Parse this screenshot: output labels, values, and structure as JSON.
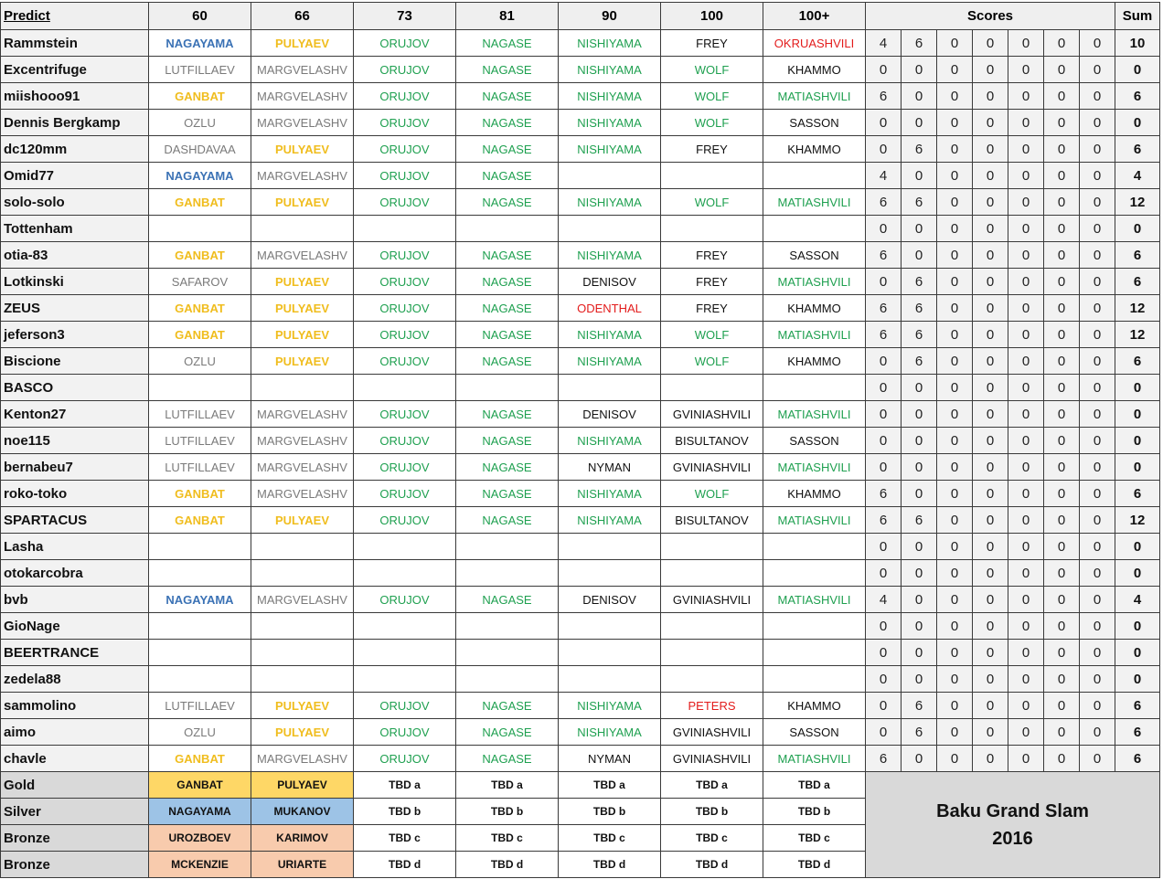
{
  "header": {
    "predict": "Predict",
    "categories": [
      "60",
      "66",
      "73",
      "81",
      "90",
      "100",
      "100+"
    ],
    "scores": "Scores",
    "sum": "Sum"
  },
  "colors": {
    "blue": "#3b72b5",
    "yellow": "#f0bd1e",
    "green": "#1fa050",
    "gray": "#7a7a7a",
    "red": "#e31c1c",
    "black": "#111111",
    "gold_fill": "#fed766",
    "silver_fill": "#9dc3e6",
    "bronze_fill": "#f8cbad"
  },
  "pick_colors": {
    "NAGAYAMA": "blue",
    "GANBAT": "yellow",
    "PULYAEV": "yellow",
    "ORUJOV": "green",
    "NAGASE": "green",
    "NISHIYAMA": "green",
    "WOLF": "green",
    "MATIASHVILI": "green",
    "OKRUASHVILI": "red",
    "ODENTHAL": "red",
    "PETERS": "red",
    "FREY": "black",
    "KHAMMO": "black",
    "SASSON": "black",
    "DENISOV": "black",
    "GVINIASHVILI": "black",
    "BISULTANOV": "black",
    "NYMAN": "black",
    "LUTFILLAEV": "gray",
    "MARGVELASHV": "gray",
    "OZLU": "gray",
    "DASHDAVAA": "gray",
    "SAFAROV": "gray"
  },
  "rows": [
    {
      "name": "Rammstein",
      "picks": [
        "NAGAYAMA",
        "PULYAEV",
        "ORUJOV",
        "NAGASE",
        "NISHIYAMA",
        "FREY",
        "OKRUASHVILI"
      ],
      "scores": [
        4,
        6,
        0,
        0,
        0,
        0,
        0
      ],
      "sum": 10
    },
    {
      "name": "Excentrifuge",
      "picks": [
        "LUTFILLAEV",
        "MARGVELASHV",
        "ORUJOV",
        "NAGASE",
        "NISHIYAMA",
        "WOLF",
        "KHAMMO"
      ],
      "scores": [
        0,
        0,
        0,
        0,
        0,
        0,
        0
      ],
      "sum": 0
    },
    {
      "name": "miishooo91",
      "picks": [
        "GANBAT",
        "MARGVELASHV",
        "ORUJOV",
        "NAGASE",
        "NISHIYAMA",
        "WOLF",
        "MATIASHVILI"
      ],
      "scores": [
        6,
        0,
        0,
        0,
        0,
        0,
        0
      ],
      "sum": 6
    },
    {
      "name": "Dennis Bergkamp",
      "picks": [
        "OZLU",
        "MARGVELASHV",
        "ORUJOV",
        "NAGASE",
        "NISHIYAMA",
        "WOLF",
        "SASSON"
      ],
      "scores": [
        0,
        0,
        0,
        0,
        0,
        0,
        0
      ],
      "sum": 0
    },
    {
      "name": "dc120mm",
      "picks": [
        "DASHDAVAA",
        "PULYAEV",
        "ORUJOV",
        "NAGASE",
        "NISHIYAMA",
        "FREY",
        "KHAMMO"
      ],
      "scores": [
        0,
        6,
        0,
        0,
        0,
        0,
        0
      ],
      "sum": 6
    },
    {
      "name": "Omid77",
      "picks": [
        "NAGAYAMA",
        "MARGVELASHV",
        "ORUJOV",
        "NAGASE",
        "",
        "",
        ""
      ],
      "scores": [
        4,
        0,
        0,
        0,
        0,
        0,
        0
      ],
      "sum": 4
    },
    {
      "name": "solo-solo",
      "picks": [
        "GANBAT",
        "PULYAEV",
        "ORUJOV",
        "NAGASE",
        "NISHIYAMA",
        "WOLF",
        "MATIASHVILI"
      ],
      "scores": [
        6,
        6,
        0,
        0,
        0,
        0,
        0
      ],
      "sum": 12
    },
    {
      "name": "Tottenham",
      "picks": [
        "",
        "",
        "",
        "",
        "",
        "",
        ""
      ],
      "scores": [
        0,
        0,
        0,
        0,
        0,
        0,
        0
      ],
      "sum": 0
    },
    {
      "name": "otia-83",
      "picks": [
        "GANBAT",
        "MARGVELASHV",
        "ORUJOV",
        "NAGASE",
        "NISHIYAMA",
        "FREY",
        "SASSON"
      ],
      "scores": [
        6,
        0,
        0,
        0,
        0,
        0,
        0
      ],
      "sum": 6
    },
    {
      "name": "Lotkinski",
      "picks": [
        "SAFAROV",
        "PULYAEV",
        "ORUJOV",
        "NAGASE",
        "DENISOV",
        "FREY",
        "MATIASHVILI"
      ],
      "scores": [
        0,
        6,
        0,
        0,
        0,
        0,
        0
      ],
      "sum": 6
    },
    {
      "name": "ZEUS",
      "picks": [
        "GANBAT",
        "PULYAEV",
        "ORUJOV",
        "NAGASE",
        "ODENTHAL",
        "FREY",
        "KHAMMO"
      ],
      "scores": [
        6,
        6,
        0,
        0,
        0,
        0,
        0
      ],
      "sum": 12
    },
    {
      "name": "jeferson3",
      "picks": [
        "GANBAT",
        "PULYAEV",
        "ORUJOV",
        "NAGASE",
        "NISHIYAMA",
        "WOLF",
        "MATIASHVILI"
      ],
      "scores": [
        6,
        6,
        0,
        0,
        0,
        0,
        0
      ],
      "sum": 12
    },
    {
      "name": "Biscione",
      "picks": [
        "OZLU",
        "PULYAEV",
        "ORUJOV",
        "NAGASE",
        "NISHIYAMA",
        "WOLF",
        "KHAMMO"
      ],
      "scores": [
        0,
        6,
        0,
        0,
        0,
        0,
        0
      ],
      "sum": 6
    },
    {
      "name": "BASCO",
      "picks": [
        "",
        "",
        "",
        "",
        "",
        "",
        ""
      ],
      "scores": [
        0,
        0,
        0,
        0,
        0,
        0,
        0
      ],
      "sum": 0
    },
    {
      "name": "Kenton27",
      "picks": [
        "LUTFILLAEV",
        "MARGVELASHV",
        "ORUJOV",
        "NAGASE",
        "DENISOV",
        "GVINIASHVILI",
        "MATIASHVILI"
      ],
      "scores": [
        0,
        0,
        0,
        0,
        0,
        0,
        0
      ],
      "sum": 0
    },
    {
      "name": "noe115",
      "picks": [
        "LUTFILLAEV",
        "MARGVELASHV",
        "ORUJOV",
        "NAGASE",
        "NISHIYAMA",
        "BISULTANOV",
        "SASSON"
      ],
      "scores": [
        0,
        0,
        0,
        0,
        0,
        0,
        0
      ],
      "sum": 0
    },
    {
      "name": "bernabeu7",
      "picks": [
        "LUTFILLAEV",
        "MARGVELASHV",
        "ORUJOV",
        "NAGASE",
        "NYMAN",
        "GVINIASHVILI",
        "MATIASHVILI"
      ],
      "scores": [
        0,
        0,
        0,
        0,
        0,
        0,
        0
      ],
      "sum": 0
    },
    {
      "name": "roko-toko",
      "picks": [
        "GANBAT",
        "MARGVELASHV",
        "ORUJOV",
        "NAGASE",
        "NISHIYAMA",
        "WOLF",
        "KHAMMO"
      ],
      "scores": [
        6,
        0,
        0,
        0,
        0,
        0,
        0
      ],
      "sum": 6
    },
    {
      "name": "SPARTACUS",
      "picks": [
        "GANBAT",
        "PULYAEV",
        "ORUJOV",
        "NAGASE",
        "NISHIYAMA",
        "BISULTANOV",
        "MATIASHVILI"
      ],
      "scores": [
        6,
        6,
        0,
        0,
        0,
        0,
        0
      ],
      "sum": 12
    },
    {
      "name": "Lasha",
      "picks": [
        "",
        "",
        "",
        "",
        "",
        "",
        ""
      ],
      "scores": [
        0,
        0,
        0,
        0,
        0,
        0,
        0
      ],
      "sum": 0
    },
    {
      "name": "otokarcobra",
      "picks": [
        "",
        "",
        "",
        "",
        "",
        "",
        ""
      ],
      "scores": [
        0,
        0,
        0,
        0,
        0,
        0,
        0
      ],
      "sum": 0
    },
    {
      "name": "bvb",
      "picks": [
        "NAGAYAMA",
        "MARGVELASHV",
        "ORUJOV",
        "NAGASE",
        "DENISOV",
        "GVINIASHVILI",
        "MATIASHVILI"
      ],
      "scores": [
        4,
        0,
        0,
        0,
        0,
        0,
        0
      ],
      "sum": 4
    },
    {
      "name": "GioNage",
      "picks": [
        "",
        "",
        "",
        "",
        "",
        "",
        ""
      ],
      "scores": [
        0,
        0,
        0,
        0,
        0,
        0,
        0
      ],
      "sum": 0
    },
    {
      "name": "BEERTRANCE",
      "picks": [
        "",
        "",
        "",
        "",
        "",
        "",
        ""
      ],
      "scores": [
        0,
        0,
        0,
        0,
        0,
        0,
        0
      ],
      "sum": 0
    },
    {
      "name": "zedela88",
      "picks": [
        "",
        "",
        "",
        "",
        "",
        "",
        ""
      ],
      "scores": [
        0,
        0,
        0,
        0,
        0,
        0,
        0
      ],
      "sum": 0
    },
    {
      "name": "sammolino",
      "picks": [
        "LUTFILLAEV",
        "PULYAEV",
        "ORUJOV",
        "NAGASE",
        "NISHIYAMA",
        "PETERS",
        "KHAMMO"
      ],
      "scores": [
        0,
        6,
        0,
        0,
        0,
        0,
        0
      ],
      "sum": 6
    },
    {
      "name": "aimo",
      "picks": [
        "OZLU",
        "PULYAEV",
        "ORUJOV",
        "NAGASE",
        "NISHIYAMA",
        "GVINIASHVILI",
        "SASSON"
      ],
      "scores": [
        0,
        6,
        0,
        0,
        0,
        0,
        0
      ],
      "sum": 6
    },
    {
      "name": "chavle",
      "picks": [
        "GANBAT",
        "MARGVELASHV",
        "ORUJOV",
        "NAGASE",
        "NYMAN",
        "GVINIASHVILI",
        "MATIASHVILI"
      ],
      "scores": [
        6,
        0,
        0,
        0,
        0,
        0,
        0
      ],
      "sum": 6
    }
  ],
  "medals": [
    {
      "label": "Gold",
      "fill": "gold_fill",
      "results": [
        "GANBAT",
        "PULYAEV",
        "TBD a",
        "TBD a",
        "TBD a",
        "TBD a",
        "TBD a"
      ]
    },
    {
      "label": "Silver",
      "fill": "silver_fill",
      "results": [
        "NAGAYAMA",
        "MUKANOV",
        "TBD b",
        "TBD b",
        "TBD b",
        "TBD b",
        "TBD b"
      ]
    },
    {
      "label": "Bronze",
      "fill": "bronze_fill",
      "results": [
        "UROZBOEV",
        "KARIMOV",
        "TBD c",
        "TBD c",
        "TBD c",
        "TBD c",
        "TBD c"
      ]
    },
    {
      "label": "Bronze",
      "fill": "bronze_fill",
      "results": [
        "MCKENZIE",
        "URIARTE",
        "TBD d",
        "TBD d",
        "TBD d",
        "TBD d",
        "TBD d"
      ]
    }
  ],
  "event": {
    "title_line1": "Baku Grand Slam",
    "title_line2": "2016"
  }
}
